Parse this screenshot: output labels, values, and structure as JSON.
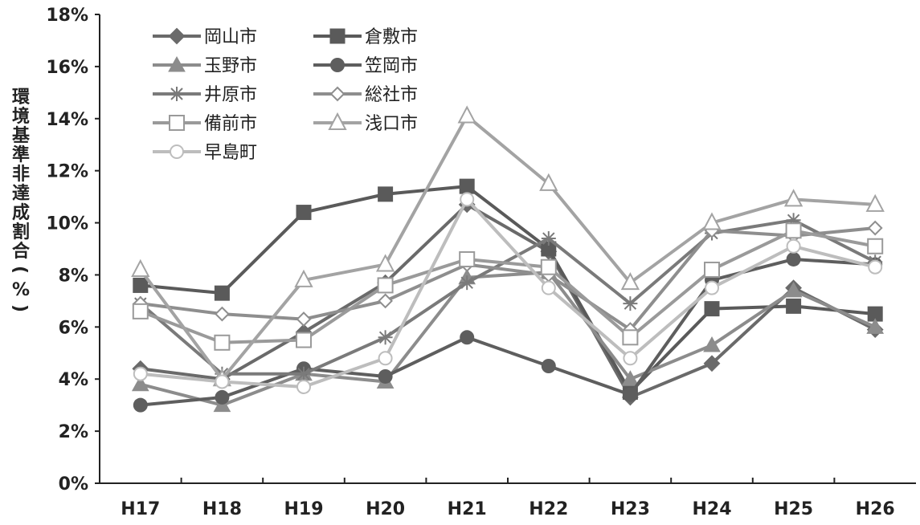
{
  "chart_data": {
    "type": "line",
    "title": "",
    "xlabel": "",
    "ylabel": "環境基準非達成割合(%)",
    "categories": [
      "H17",
      "H18",
      "H19",
      "H20",
      "H21",
      "H22",
      "H23",
      "H24",
      "H25",
      "H26"
    ],
    "ylim": [
      0,
      18
    ],
    "yticks": [
      0,
      2,
      4,
      6,
      8,
      10,
      12,
      14,
      16,
      18
    ],
    "ytick_labels": [
      "0%",
      "2%",
      "4%",
      "6%",
      "8%",
      "10%",
      "12%",
      "14%",
      "16%",
      "18%"
    ],
    "grid": false,
    "legend_position": "top-left",
    "series": [
      {
        "name": "岡山市",
        "marker": "diamond-filled",
        "color": "#6a6a6a",
        "values": [
          4.4,
          4.0,
          5.8,
          7.7,
          10.7,
          8.9,
          3.3,
          4.6,
          7.5,
          5.9
        ]
      },
      {
        "name": "倉敷市",
        "marker": "square-filled",
        "color": "#5a5a5a",
        "values": [
          7.6,
          7.3,
          10.4,
          11.1,
          11.4,
          9.0,
          3.5,
          6.7,
          6.8,
          6.5
        ]
      },
      {
        "name": "玉野市",
        "marker": "triangle-filled",
        "color": "#8c8c8c",
        "values": [
          3.8,
          3.0,
          4.2,
          3.9,
          7.9,
          8.1,
          4.0,
          5.3,
          7.4,
          6.0
        ]
      },
      {
        "name": "笠岡市",
        "marker": "circle-filled",
        "color": "#5e5e5e",
        "values": [
          3.0,
          3.3,
          4.4,
          4.1,
          5.6,
          4.5,
          3.4,
          7.8,
          8.6,
          8.4
        ]
      },
      {
        "name": "井原市",
        "marker": "star",
        "color": "#7a7a7a",
        "values": [
          6.9,
          4.2,
          4.2,
          5.6,
          7.7,
          9.4,
          6.9,
          9.6,
          10.1,
          8.5
        ]
      },
      {
        "name": "総社市",
        "marker": "diamond-open",
        "color": "#8e8e8e",
        "values": [
          6.9,
          6.5,
          6.3,
          7.0,
          8.4,
          8.0,
          5.9,
          9.7,
          9.5,
          9.8
        ]
      },
      {
        "name": "備前市",
        "marker": "square-open",
        "color": "#9a9a9a",
        "values": [
          6.6,
          5.4,
          5.5,
          7.6,
          8.6,
          8.3,
          5.6,
          8.2,
          9.7,
          9.1
        ]
      },
      {
        "name": "浅口市",
        "marker": "triangle-open",
        "color": "#a3a3a3",
        "values": [
          8.2,
          4.0,
          7.8,
          8.4,
          14.1,
          11.5,
          7.7,
          10.0,
          10.9,
          10.7
        ]
      },
      {
        "name": "早島町",
        "marker": "circle-open",
        "color": "#bdbdbd",
        "values": [
          4.2,
          3.9,
          3.7,
          4.8,
          10.9,
          7.5,
          4.8,
          7.5,
          9.1,
          8.3
        ]
      }
    ]
  }
}
